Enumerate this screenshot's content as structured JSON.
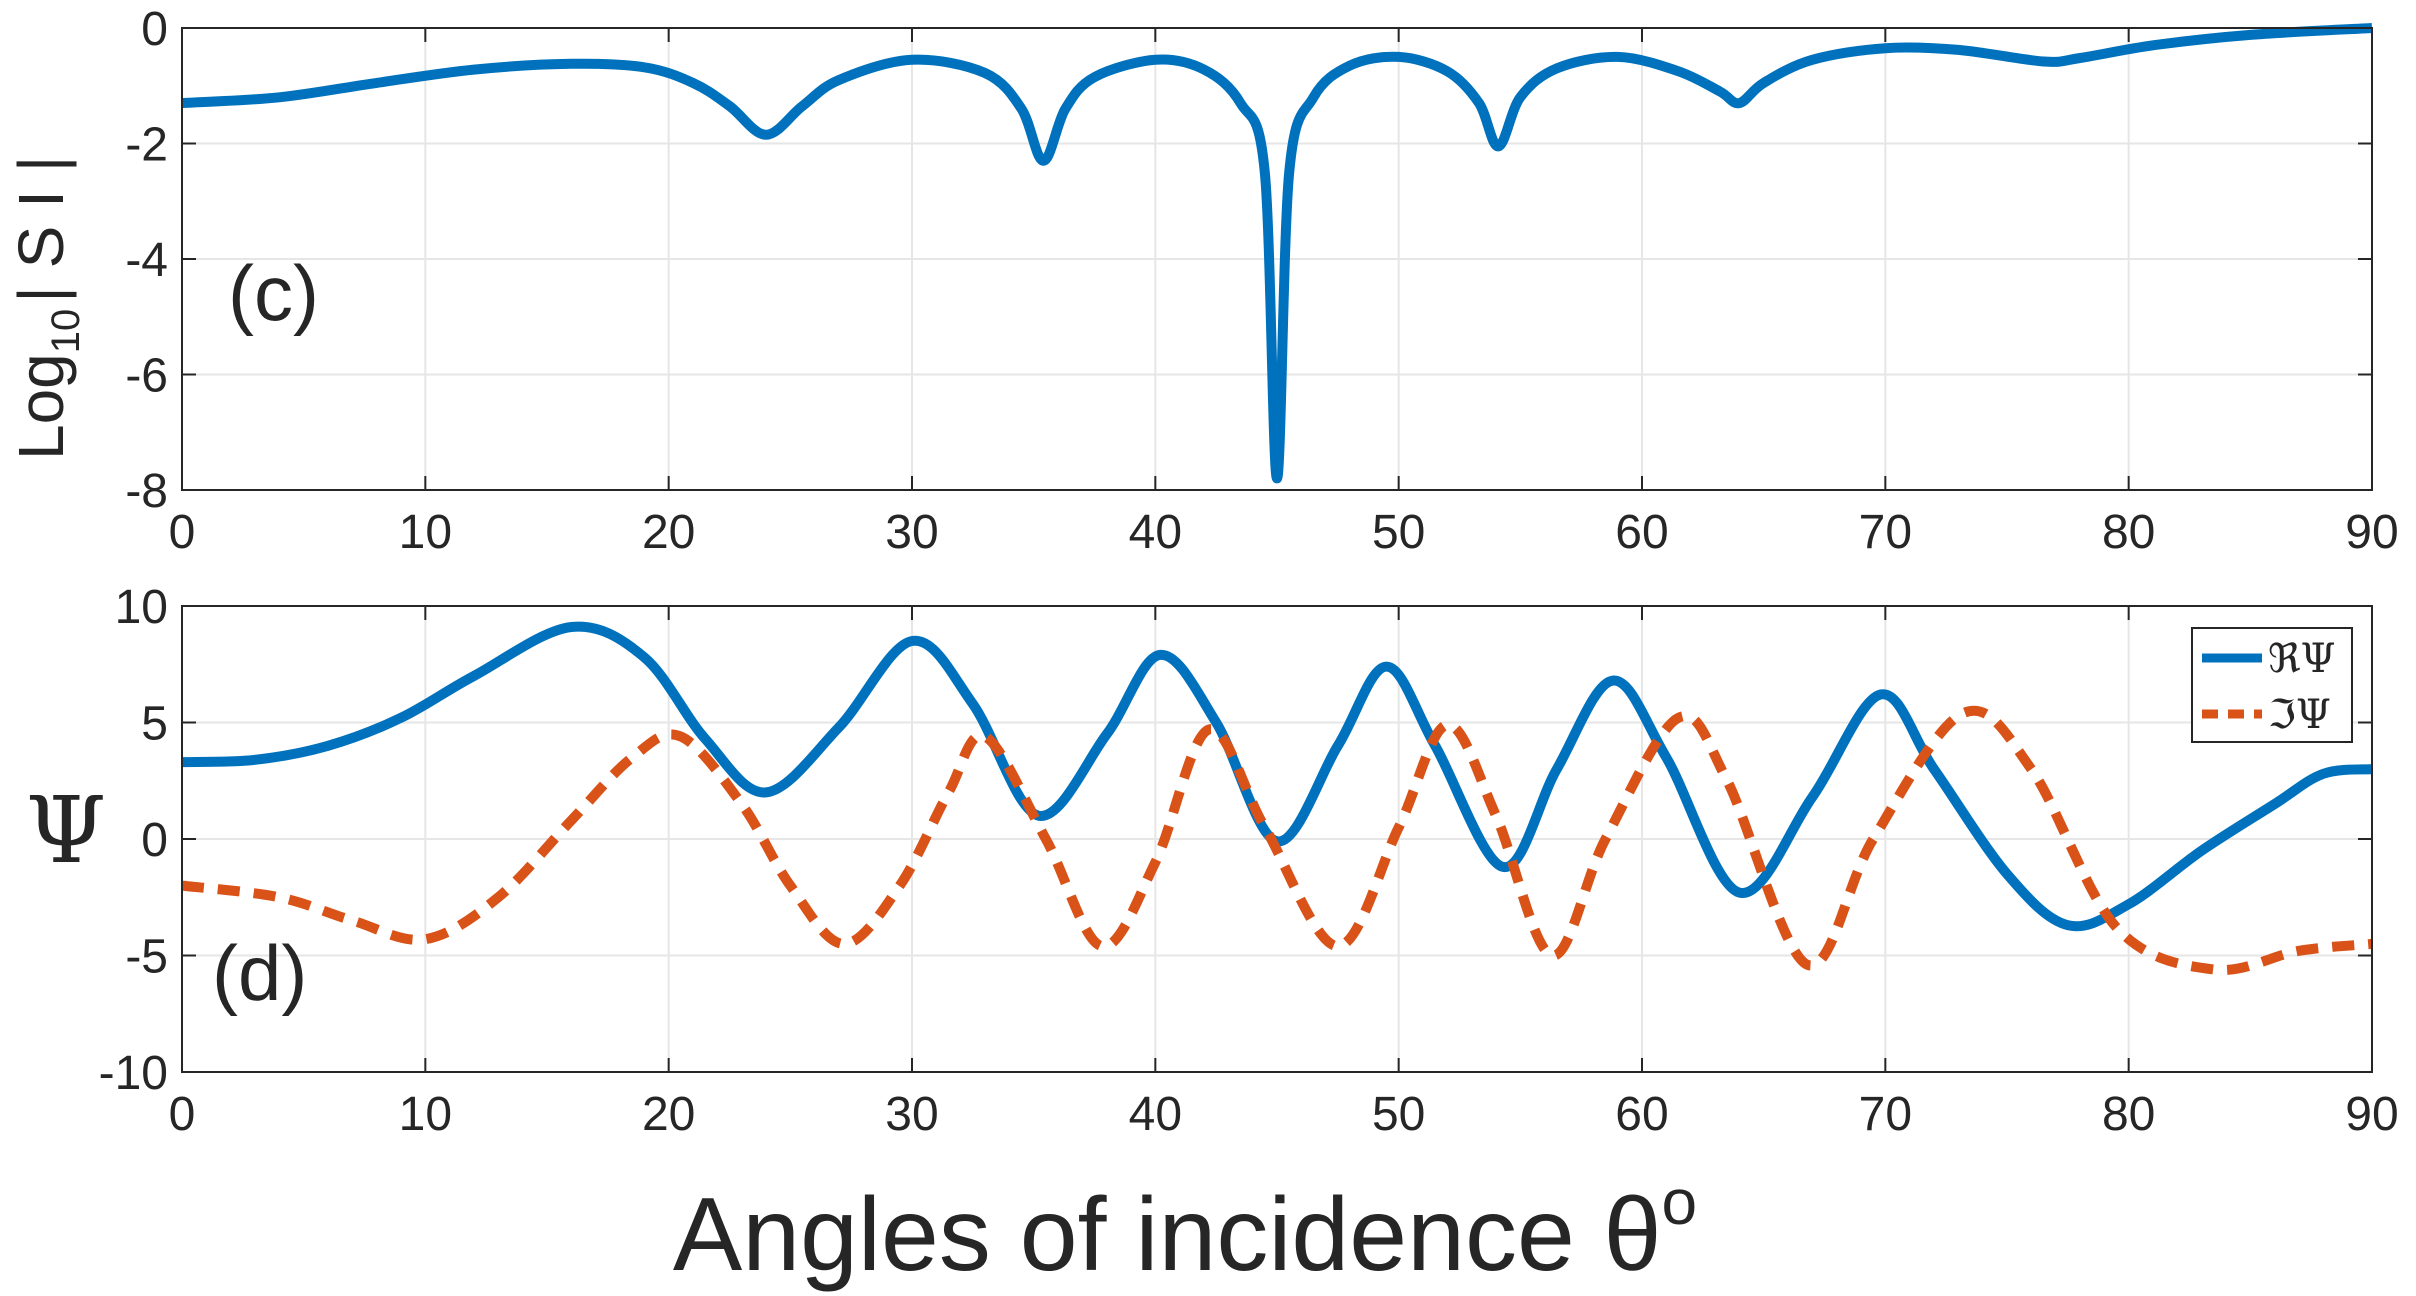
{
  "figure": {
    "xlabel": "Angles of incidence θ",
    "xlabel_superscript": "o"
  },
  "chart_data": [
    {
      "type": "line",
      "panel_label": "(c)",
      "title": "",
      "xlabel": "",
      "ylabel": "Log",
      "ylabel_subscript": "10",
      "ylabel_suffix": "| S I |",
      "xlim": [
        0,
        90
      ],
      "ylim": [
        -8,
        0
      ],
      "xticks": [
        0,
        10,
        20,
        30,
        40,
        50,
        60,
        70,
        80,
        90
      ],
      "yticks": [
        -8,
        -6,
        -4,
        -2,
        0
      ],
      "grid": true,
      "series": [
        {
          "name": "log10|SI|",
          "color": "#0072BD",
          "style": "solid",
          "x": [
            0,
            4,
            8,
            12,
            16,
            19,
            21,
            22.5,
            24,
            25.5,
            27,
            30,
            33,
            34.5,
            35.4,
            36.3,
            37.5,
            40,
            42,
            43.5,
            44.5,
            45,
            45.5,
            46.5,
            48,
            50,
            52,
            53.3,
            54.1,
            55,
            56.5,
            59,
            61.5,
            63.2,
            64,
            65,
            67,
            70,
            73,
            76.5,
            78,
            81,
            85,
            90
          ],
          "y": [
            -1.3,
            -1.2,
            -0.95,
            -0.72,
            -0.62,
            -0.68,
            -0.95,
            -1.35,
            -1.85,
            -1.35,
            -0.9,
            -0.55,
            -0.78,
            -1.4,
            -2.3,
            -1.4,
            -0.85,
            -0.55,
            -0.72,
            -1.3,
            -2.5,
            -7.8,
            -2.5,
            -1.2,
            -0.65,
            -0.5,
            -0.75,
            -1.3,
            -2.05,
            -1.2,
            -0.7,
            -0.5,
            -0.75,
            -1.1,
            -1.3,
            -0.95,
            -0.55,
            -0.35,
            -0.38,
            -0.58,
            -0.52,
            -0.3,
            -0.12,
            0.0
          ]
        }
      ]
    },
    {
      "type": "line",
      "panel_label": "(d)",
      "title": "",
      "xlabel": "Angles of incidence θ°",
      "ylabel": "Ψ",
      "xlim": [
        0,
        90
      ],
      "ylim": [
        -10,
        10
      ],
      "xticks": [
        0,
        10,
        20,
        30,
        40,
        50,
        60,
        70,
        80,
        90
      ],
      "yticks": [
        -10,
        -5,
        0,
        5,
        10
      ],
      "grid": true,
      "legend_position": "top-right",
      "series": [
        {
          "name": "ℜΨ",
          "color": "#0072BD",
          "style": "solid",
          "x": [
            0,
            3,
            6,
            9,
            12,
            16,
            19,
            21.5,
            24,
            27,
            30,
            32.5,
            35.2,
            38,
            40.2,
            42.5,
            45,
            47.5,
            49.5,
            51.5,
            54.3,
            56.5,
            58.8,
            61,
            64,
            67,
            69.8,
            72,
            75,
            77.5,
            80,
            83,
            86,
            88,
            90
          ],
          "y": [
            3.3,
            3.4,
            4.0,
            5.2,
            7.0,
            9.1,
            7.8,
            4.3,
            2.0,
            4.8,
            8.5,
            5.8,
            1.0,
            4.5,
            7.9,
            5.0,
            -0.1,
            4.0,
            7.4,
            4.0,
            -1.2,
            3.0,
            6.8,
            3.5,
            -2.3,
            1.8,
            6.2,
            3.0,
            -1.5,
            -3.7,
            -2.8,
            -0.5,
            1.5,
            2.8,
            3.0
          ]
        },
        {
          "name": "ℑΨ",
          "color": "#D95319",
          "style": "dashed",
          "x": [
            0,
            4,
            7,
            10,
            13,
            16,
            18.5,
            20.5,
            23,
            25,
            27.2,
            29.5,
            31.5,
            33,
            35.5,
            37.8,
            40,
            42.2,
            44.5,
            47.5,
            50,
            52,
            54,
            56.3,
            58.5,
            61.5,
            63.5,
            66.8,
            69.5,
            73.2,
            76,
            79.5,
            83.5,
            87,
            90
          ],
          "y": [
            -2.0,
            -2.5,
            -3.5,
            -4.3,
            -2.5,
            0.8,
            3.5,
            4.4,
            1.5,
            -2.0,
            -4.5,
            -2.0,
            2.0,
            4.4,
            0.0,
            -4.6,
            -1.0,
            4.7,
            0.5,
            -4.6,
            0.5,
            4.9,
            1.0,
            -5.0,
            0.0,
            5.2,
            2.5,
            -5.4,
            0.0,
            5.4,
            3.0,
            -3.8,
            -5.6,
            -4.8,
            -4.5
          ]
        }
      ]
    }
  ]
}
